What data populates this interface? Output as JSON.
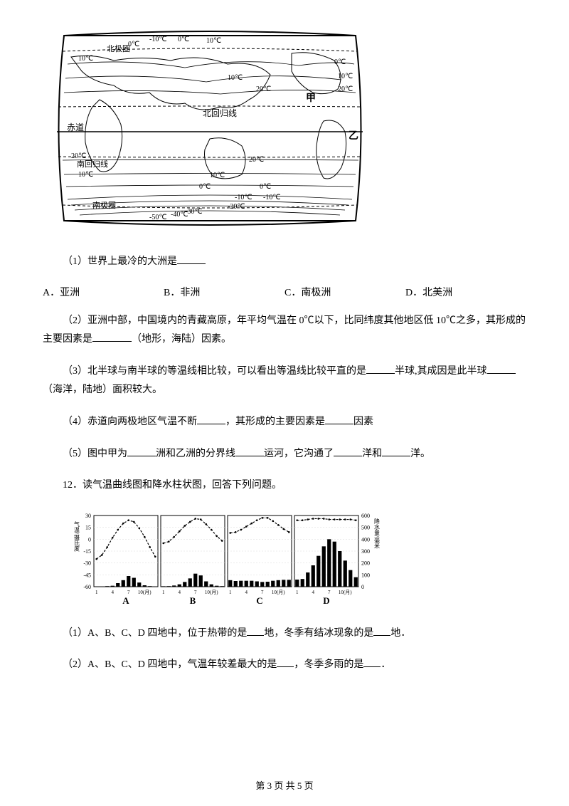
{
  "map": {
    "labels": {
      "arctic": "北极圈",
      "tropic_cancer": "北回归线",
      "equator": "赤道",
      "tropic_capricorn": "南回归线",
      "antarctic": "南极圈",
      "jia": "甲",
      "yi": "乙"
    },
    "temps": [
      "10℃",
      "0℃",
      "-10℃",
      "0℃",
      "10℃",
      "20℃",
      "10℃",
      "20℃",
      "0℃",
      "10℃",
      "20℃",
      "-10℃",
      "0℃",
      "-10℃",
      "-20℃",
      "-30℃",
      "-50℃",
      "-40℃"
    ],
    "stroke": "#000000",
    "bg": "#ffffff"
  },
  "q1": {
    "text": "（1）世界上最冷的大洲是",
    "options": {
      "A": "A．亚洲",
      "B": "B．非洲",
      "C": "C．南极洲",
      "D": "D．北美洲"
    }
  },
  "q2": {
    "prefix": "（2）亚洲中部，中国境内的青藏高原，年平均气温在 0℃以下，比同纬度其他地区低 10℃之多，其形成的主要因素是",
    "suffix": "（地形，海陆）因素。"
  },
  "q3": {
    "part1": "（3）北半球与南半球的等温线相比较，可以看出等温线比较平直的是",
    "part2": "半球,其成因是此半球",
    "part3": "（海洋，陆地）面积较大。"
  },
  "q4": {
    "part1": "（4）赤道向两极地区气温不断",
    "part2": "，其形成的主要因素是",
    "part3": "因素"
  },
  "q5": {
    "part1": "（5）图中甲为",
    "part2": "洲和乙洲的分界线",
    "part3": "运河，它沟通了",
    "part4": "洋和",
    "part5": "洋。"
  },
  "q12_intro": "12．读气温曲线图和降水柱状图，回答下列问题。",
  "climate": {
    "y_left_label": "气温/摄氏度",
    "y_left_ticks": [
      "30",
      "15",
      "0",
      "-15",
      "-30",
      "-45",
      "-60"
    ],
    "y_right_label": "降水量/毫米",
    "y_right_ticks": [
      "600",
      "500",
      "400",
      "300",
      "200",
      "100",
      "0"
    ],
    "x_ticks": [
      "1",
      "4",
      "7",
      "10(月)"
    ],
    "panel_labels": [
      "A",
      "B",
      "C",
      "D"
    ],
    "panels": [
      {
        "temps": [
          -25,
          -20,
          -10,
          2,
          12,
          20,
          24,
          22,
          14,
          3,
          -10,
          -22
        ],
        "precip": [
          2,
          3,
          5,
          8,
          30,
          55,
          90,
          75,
          35,
          12,
          5,
          3
        ]
      },
      {
        "temps": [
          -5,
          -3,
          3,
          10,
          17,
          22,
          26,
          25,
          19,
          12,
          4,
          -2
        ],
        "precip": [
          4,
          5,
          10,
          20,
          40,
          70,
          110,
          95,
          45,
          20,
          8,
          5
        ]
      },
      {
        "temps": [
          8,
          9,
          12,
          16,
          20,
          24,
          27,
          27,
          23,
          18,
          13,
          9
        ],
        "precip": [
          55,
          48,
          50,
          50,
          50,
          45,
          40,
          42,
          50,
          55,
          58,
          58
        ]
      },
      {
        "temps": [
          24,
          24,
          25,
          26,
          26,
          26,
          25,
          25,
          25,
          25,
          25,
          24
        ],
        "precip": [
          60,
          65,
          120,
          180,
          260,
          340,
          400,
          380,
          300,
          220,
          140,
          80
        ]
      }
    ],
    "colors": {
      "stroke": "#000000",
      "bar_fill": "#000000",
      "bg": "#ffffff",
      "grid": "#d8d8d8"
    }
  },
  "q12_1": {
    "part1": "（1）A、B、C、D 四地中，位于热带的是",
    "part2": "地，冬季有结冰现象的是",
    "part3": "地．"
  },
  "q12_2": {
    "part1": "（2）A、B、C、D 四地中，气温年较差最大的是",
    "part2": "，冬季多雨的是",
    "part3": "．"
  },
  "footer": "第 3 页 共 5 页"
}
